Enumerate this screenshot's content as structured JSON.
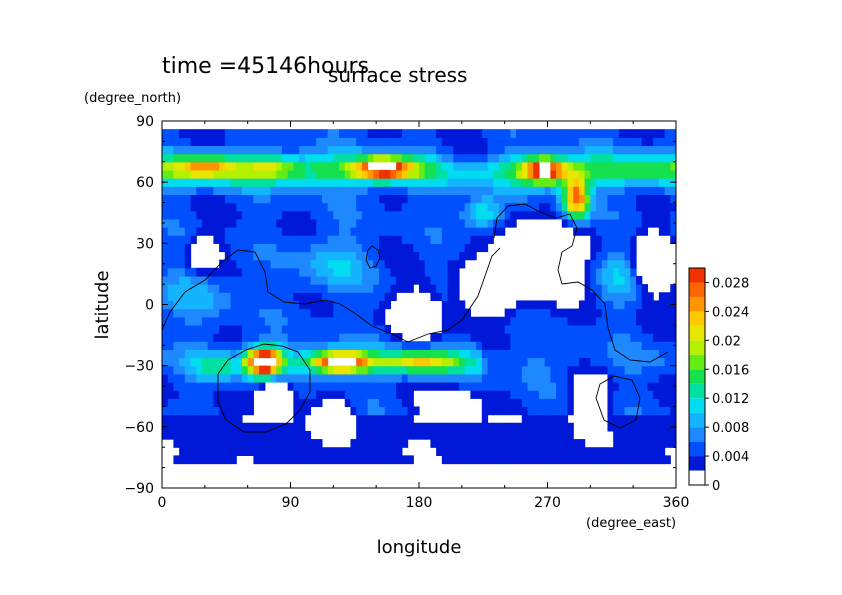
{
  "chart_data": {
    "type": "heatmap",
    "time_label": "time =45146hours",
    "title": "surface stress",
    "xlabel": "longitude",
    "ylabel": "latitude",
    "x_units": "(degree_east)",
    "y_units": "(degree_north)",
    "xlim": [
      0,
      360
    ],
    "ylim": [
      -90,
      90
    ],
    "x_ticks": [
      "0",
      "90",
      "180",
      "270",
      "360"
    ],
    "y_ticks": [
      "90",
      "60",
      "30",
      "0",
      "−30",
      "−60",
      "−90"
    ],
    "colorbar": {
      "levels": [
        0,
        0.002,
        0.004,
        0.006,
        0.008,
        0.01,
        0.012,
        0.014,
        0.016,
        0.018,
        0.02,
        0.022,
        0.024,
        0.026,
        0.028,
        0.03
      ],
      "tick_labels": [
        "0",
        "0.004",
        "0.008",
        "0.012",
        "0.016",
        "0.02",
        "0.024",
        "0.028"
      ],
      "colors": [
        "#ffffff",
        "#0018d8",
        "#0050ff",
        "#1e88ff",
        "#14b4ff",
        "#00dcf0",
        "#00e0a0",
        "#14e050",
        "#64ec14",
        "#b4f000",
        "#e6e600",
        "#ffc800",
        "#ff9600",
        "#ff6400",
        "#f03200"
      ]
    },
    "features": [
      {
        "lon": 30,
        "lat": 68,
        "value": 0.024
      },
      {
        "lon": 75,
        "lat": 68,
        "value": 0.02
      },
      {
        "lon": 155,
        "lat": 67,
        "value": 0.034
      },
      {
        "lon": 268,
        "lat": 66,
        "value": 0.032
      },
      {
        "lon": 290,
        "lat": 52,
        "value": 0.034
      },
      {
        "lon": 72,
        "lat": -28,
        "value": 0.034
      },
      {
        "lon": 125,
        "lat": -28,
        "value": 0.031
      },
      {
        "lon": 180,
        "lat": -28,
        "value": 0.02
      },
      {
        "lon": 40,
        "lat": -30,
        "value": 0.016
      },
      {
        "lon": 225,
        "lat": 45,
        "value": 0.018
      },
      {
        "lon": 120,
        "lat": 20,
        "value": 0.012
      },
      {
        "lon": 25,
        "lat": 5,
        "value": 0.01
      },
      {
        "lon": 320,
        "lat": 15,
        "value": 0.012
      }
    ]
  }
}
